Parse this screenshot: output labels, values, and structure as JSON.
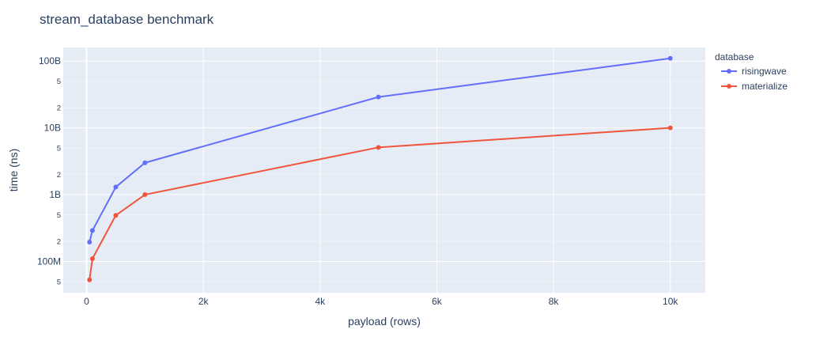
{
  "chart_data": {
    "type": "line",
    "title": "stream_database benchmark",
    "xlabel": "payload (rows)",
    "ylabel": "time (ns)",
    "x_scale": "linear",
    "y_scale": "log",
    "xlim": [
      -400,
      10600
    ],
    "ylim": [
      34000000,
      160000000000
    ],
    "x_ticks": [
      {
        "value": 0,
        "label": "0"
      },
      {
        "value": 2000,
        "label": "2k"
      },
      {
        "value": 4000,
        "label": "4k"
      },
      {
        "value": 6000,
        "label": "6k"
      },
      {
        "value": 8000,
        "label": "8k"
      },
      {
        "value": 10000,
        "label": "10k"
      }
    ],
    "y_major_ticks": [
      {
        "value": 100000000,
        "label": "100M"
      },
      {
        "value": 1000000000,
        "label": "1B"
      },
      {
        "value": 10000000000,
        "label": "10B"
      },
      {
        "value": 100000000000,
        "label": "100B"
      }
    ],
    "y_minor_ticks": [
      {
        "value": 50000000,
        "label": "5"
      },
      {
        "value": 200000000,
        "label": "2"
      },
      {
        "value": 500000000,
        "label": "5"
      },
      {
        "value": 2000000000,
        "label": "2"
      },
      {
        "value": 5000000000,
        "label": "5"
      },
      {
        "value": 20000000000,
        "label": "2"
      },
      {
        "value": 50000000000,
        "label": "5"
      }
    ],
    "grid": true,
    "legend": {
      "title": "database",
      "position": "top-right-outside"
    },
    "series": [
      {
        "name": "risingwave",
        "color": "#636efa",
        "x": [
          50,
          100,
          500,
          1000,
          5000,
          10000
        ],
        "y": [
          195000000,
          290000000,
          1300000000,
          3000000000,
          29000000000,
          110000000000
        ]
      },
      {
        "name": "materialize",
        "color": "#ef553b",
        "x": [
          50,
          100,
          500,
          1000,
          5000,
          10000
        ],
        "y": [
          53000000,
          110000000,
          490000000,
          1000000000,
          5100000000,
          10000000000
        ]
      }
    ]
  }
}
